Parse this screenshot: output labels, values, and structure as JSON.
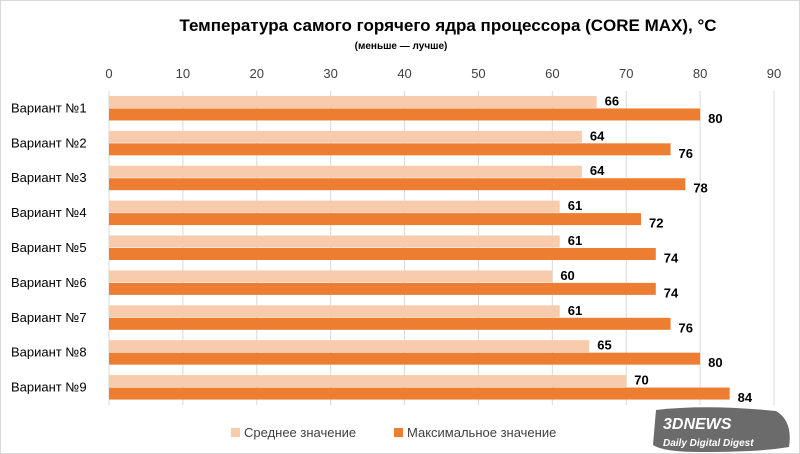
{
  "chart_data": {
    "type": "bar",
    "orientation": "horizontal",
    "title": "Температура самого горячего ядра процессора (CORE MAX), °C",
    "subtitle": "(меньше — лучше)",
    "xlabel": "",
    "ylabel": "",
    "xlim": [
      0,
      90
    ],
    "x_ticks": [
      0,
      10,
      20,
      30,
      40,
      50,
      60,
      70,
      80,
      90
    ],
    "x_axis_position": "top",
    "grid": true,
    "legend_position": "bottom",
    "categories": [
      "Вариант №1",
      "Вариант №2",
      "Вариант №3",
      "Вариант №4",
      "Вариант №5",
      "Вариант №6",
      "Вариант №7",
      "Вариант №8",
      "Вариант №9"
    ],
    "series": [
      {
        "name": "Среднее значение",
        "color": "#f8cbad",
        "values": [
          66,
          64,
          64,
          61,
          61,
          60,
          61,
          65,
          70
        ]
      },
      {
        "name": "Максимальное значение",
        "color": "#ed7d31",
        "values": [
          80,
          76,
          78,
          72,
          74,
          74,
          76,
          80,
          84
        ]
      }
    ]
  },
  "watermark": {
    "brand": "3DNEWS",
    "tagline": "Daily Digital Digest"
  }
}
